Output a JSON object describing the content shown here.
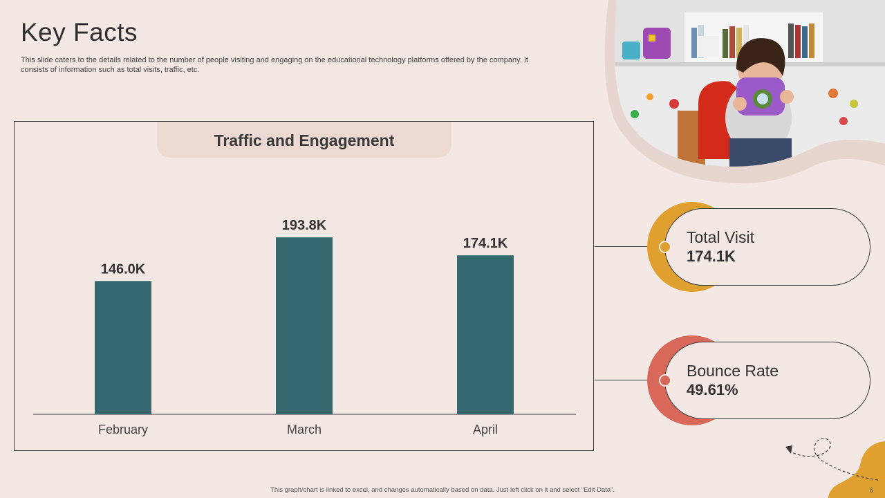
{
  "page": {
    "title": "Key Facts",
    "subtitle": "This slide caters to the details related to the number of people visiting and engaging on the educational technology platforms offered by the company. It consists of information such as total visits, traffic, etc.",
    "footer_note": "This graph/chart is linked to excel, and changes automatically based on data. Just left click on it and select “Edit Data”.",
    "page_number": "6"
  },
  "chart_data": {
    "type": "bar",
    "title": "Traffic and Engagement",
    "categories": [
      "February",
      "March",
      "April"
    ],
    "values": [
      146.0,
      193.8,
      174.1
    ],
    "data_labels": [
      "146.0K",
      "193.8K",
      "174.1K"
    ],
    "ylim": [
      0,
      200
    ],
    "grid": false,
    "legend": "none",
    "bar_color": "#35686f"
  },
  "kpis": [
    {
      "label": "Total Visit",
      "value": "174.1K",
      "color": "#e0a030"
    },
    {
      "label": "Bounce Rate",
      "value": "49.61%",
      "color": "#d8685a"
    }
  ],
  "colors": {
    "background": "#f3e8e3",
    "title_tab": "#ebd9d2",
    "accent_yellow": "#e0a030",
    "accent_red": "#d8685a",
    "bar": "#35686f"
  },
  "image": {
    "alt": "child holding toy camera in classroom"
  }
}
